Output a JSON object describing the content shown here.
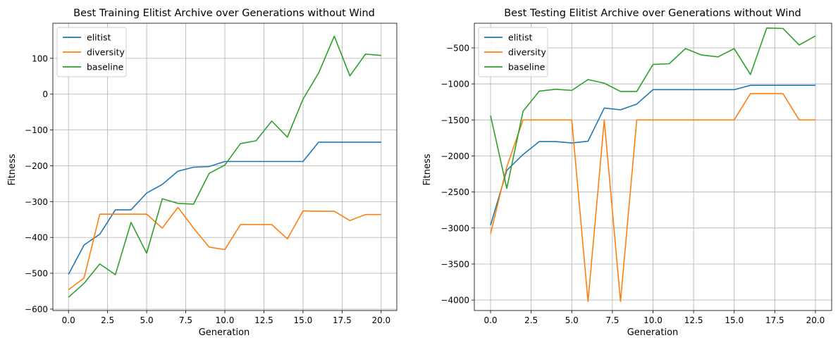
{
  "chart_data": [
    {
      "type": "line",
      "title": "Best Training Elitist Archive over Generations without Wind",
      "xlabel": "Generation",
      "ylabel": "Fitness",
      "xlim": [
        -1,
        21
      ],
      "ylim": [
        -604,
        198
      ],
      "xticks": [
        0.0,
        2.5,
        5.0,
        7.5,
        10.0,
        12.5,
        15.0,
        17.5,
        20.0
      ],
      "xtick_labels": [
        "0.0",
        "2.5",
        "5.0",
        "7.5",
        "10.0",
        "12.5",
        "15.0",
        "17.5",
        "20.0"
      ],
      "yticks": [
        -600,
        -500,
        -400,
        -300,
        -200,
        -100,
        0,
        100
      ],
      "ytick_labels": [
        "−600",
        "−500",
        "−400",
        "−300",
        "−200",
        "−100",
        "0",
        "100"
      ],
      "grid": true,
      "legend_position": "top-left",
      "x": [
        0,
        1,
        2,
        3,
        4,
        5,
        6,
        7,
        8,
        9,
        10,
        11,
        12,
        13,
        14,
        15,
        16,
        17,
        18,
        19,
        20
      ],
      "series": [
        {
          "name": "elitist",
          "color": "#1f77b4",
          "values": [
            -503,
            -421,
            -391,
            -323,
            -323,
            -276,
            -252,
            -215,
            -204,
            -202,
            -188,
            -188,
            -188,
            -188,
            -188,
            -188,
            -134,
            -134,
            -134,
            -134,
            -134
          ]
        },
        {
          "name": "diversity",
          "color": "#ff7f0e",
          "values": [
            -546,
            -513,
            -335,
            -335,
            -335,
            -335,
            -374,
            -316,
            -374,
            -427,
            -434,
            -364,
            -364,
            -364,
            -404,
            -326,
            -327,
            -327,
            -353,
            -336,
            -336
          ]
        },
        {
          "name": "baseline",
          "color": "#2ca02c",
          "values": [
            -567,
            -528,
            -474,
            -504,
            -358,
            -444,
            -292,
            -305,
            -307,
            -221,
            -198,
            -138,
            -130,
            -75,
            -120,
            -14,
            59,
            162,
            51,
            112,
            108
          ]
        }
      ]
    },
    {
      "type": "line",
      "title": "Best Testing Elitist Archive over Generations without Wind",
      "xlabel": "Generation",
      "ylabel": "Fitness",
      "xlim": [
        -1,
        21
      ],
      "ylim": [
        -4145,
        -158
      ],
      "xticks": [
        0.0,
        2.5,
        5.0,
        7.5,
        10.0,
        12.5,
        15.0,
        17.5,
        20.0
      ],
      "xtick_labels": [
        "0.0",
        "2.5",
        "5.0",
        "7.5",
        "10.0",
        "12.5",
        "15.0",
        "17.5",
        "20.0"
      ],
      "yticks": [
        -4000,
        -3500,
        -3000,
        -2500,
        -2000,
        -1500,
        -1000,
        -500
      ],
      "ytick_labels": [
        "−4000",
        "−3500",
        "−3000",
        "−2500",
        "−2000",
        "−1500",
        "−1000",
        "−500"
      ],
      "grid": true,
      "legend_position": "top-left",
      "x": [
        0,
        1,
        2,
        3,
        4,
        5,
        6,
        7,
        8,
        9,
        10,
        11,
        12,
        13,
        14,
        15,
        16,
        17,
        18,
        19,
        20
      ],
      "series": [
        {
          "name": "elitist",
          "color": "#1f77b4",
          "values": [
            -2960,
            -2200,
            -1980,
            -1800,
            -1800,
            -1820,
            -1795,
            -1335,
            -1360,
            -1280,
            -1080,
            -1080,
            -1080,
            -1080,
            -1080,
            -1080,
            -1020,
            -1020,
            -1020,
            -1020,
            -1020
          ]
        },
        {
          "name": "diversity",
          "color": "#ff7f0e",
          "values": [
            -3080,
            -2150,
            -1500,
            -1500,
            -1500,
            -1500,
            -4020,
            -1500,
            -4020,
            -1500,
            -1500,
            -1500,
            -1500,
            -1500,
            -1500,
            -1500,
            -1135,
            -1135,
            -1135,
            -1500,
            -1500
          ]
        },
        {
          "name": "baseline",
          "color": "#2ca02c",
          "values": [
            -1440,
            -2450,
            -1380,
            -1100,
            -1075,
            -1090,
            -940,
            -990,
            -1105,
            -1105,
            -730,
            -720,
            -510,
            -600,
            -625,
            -510,
            -870,
            -225,
            -230,
            -460,
            -335
          ]
        }
      ]
    }
  ]
}
